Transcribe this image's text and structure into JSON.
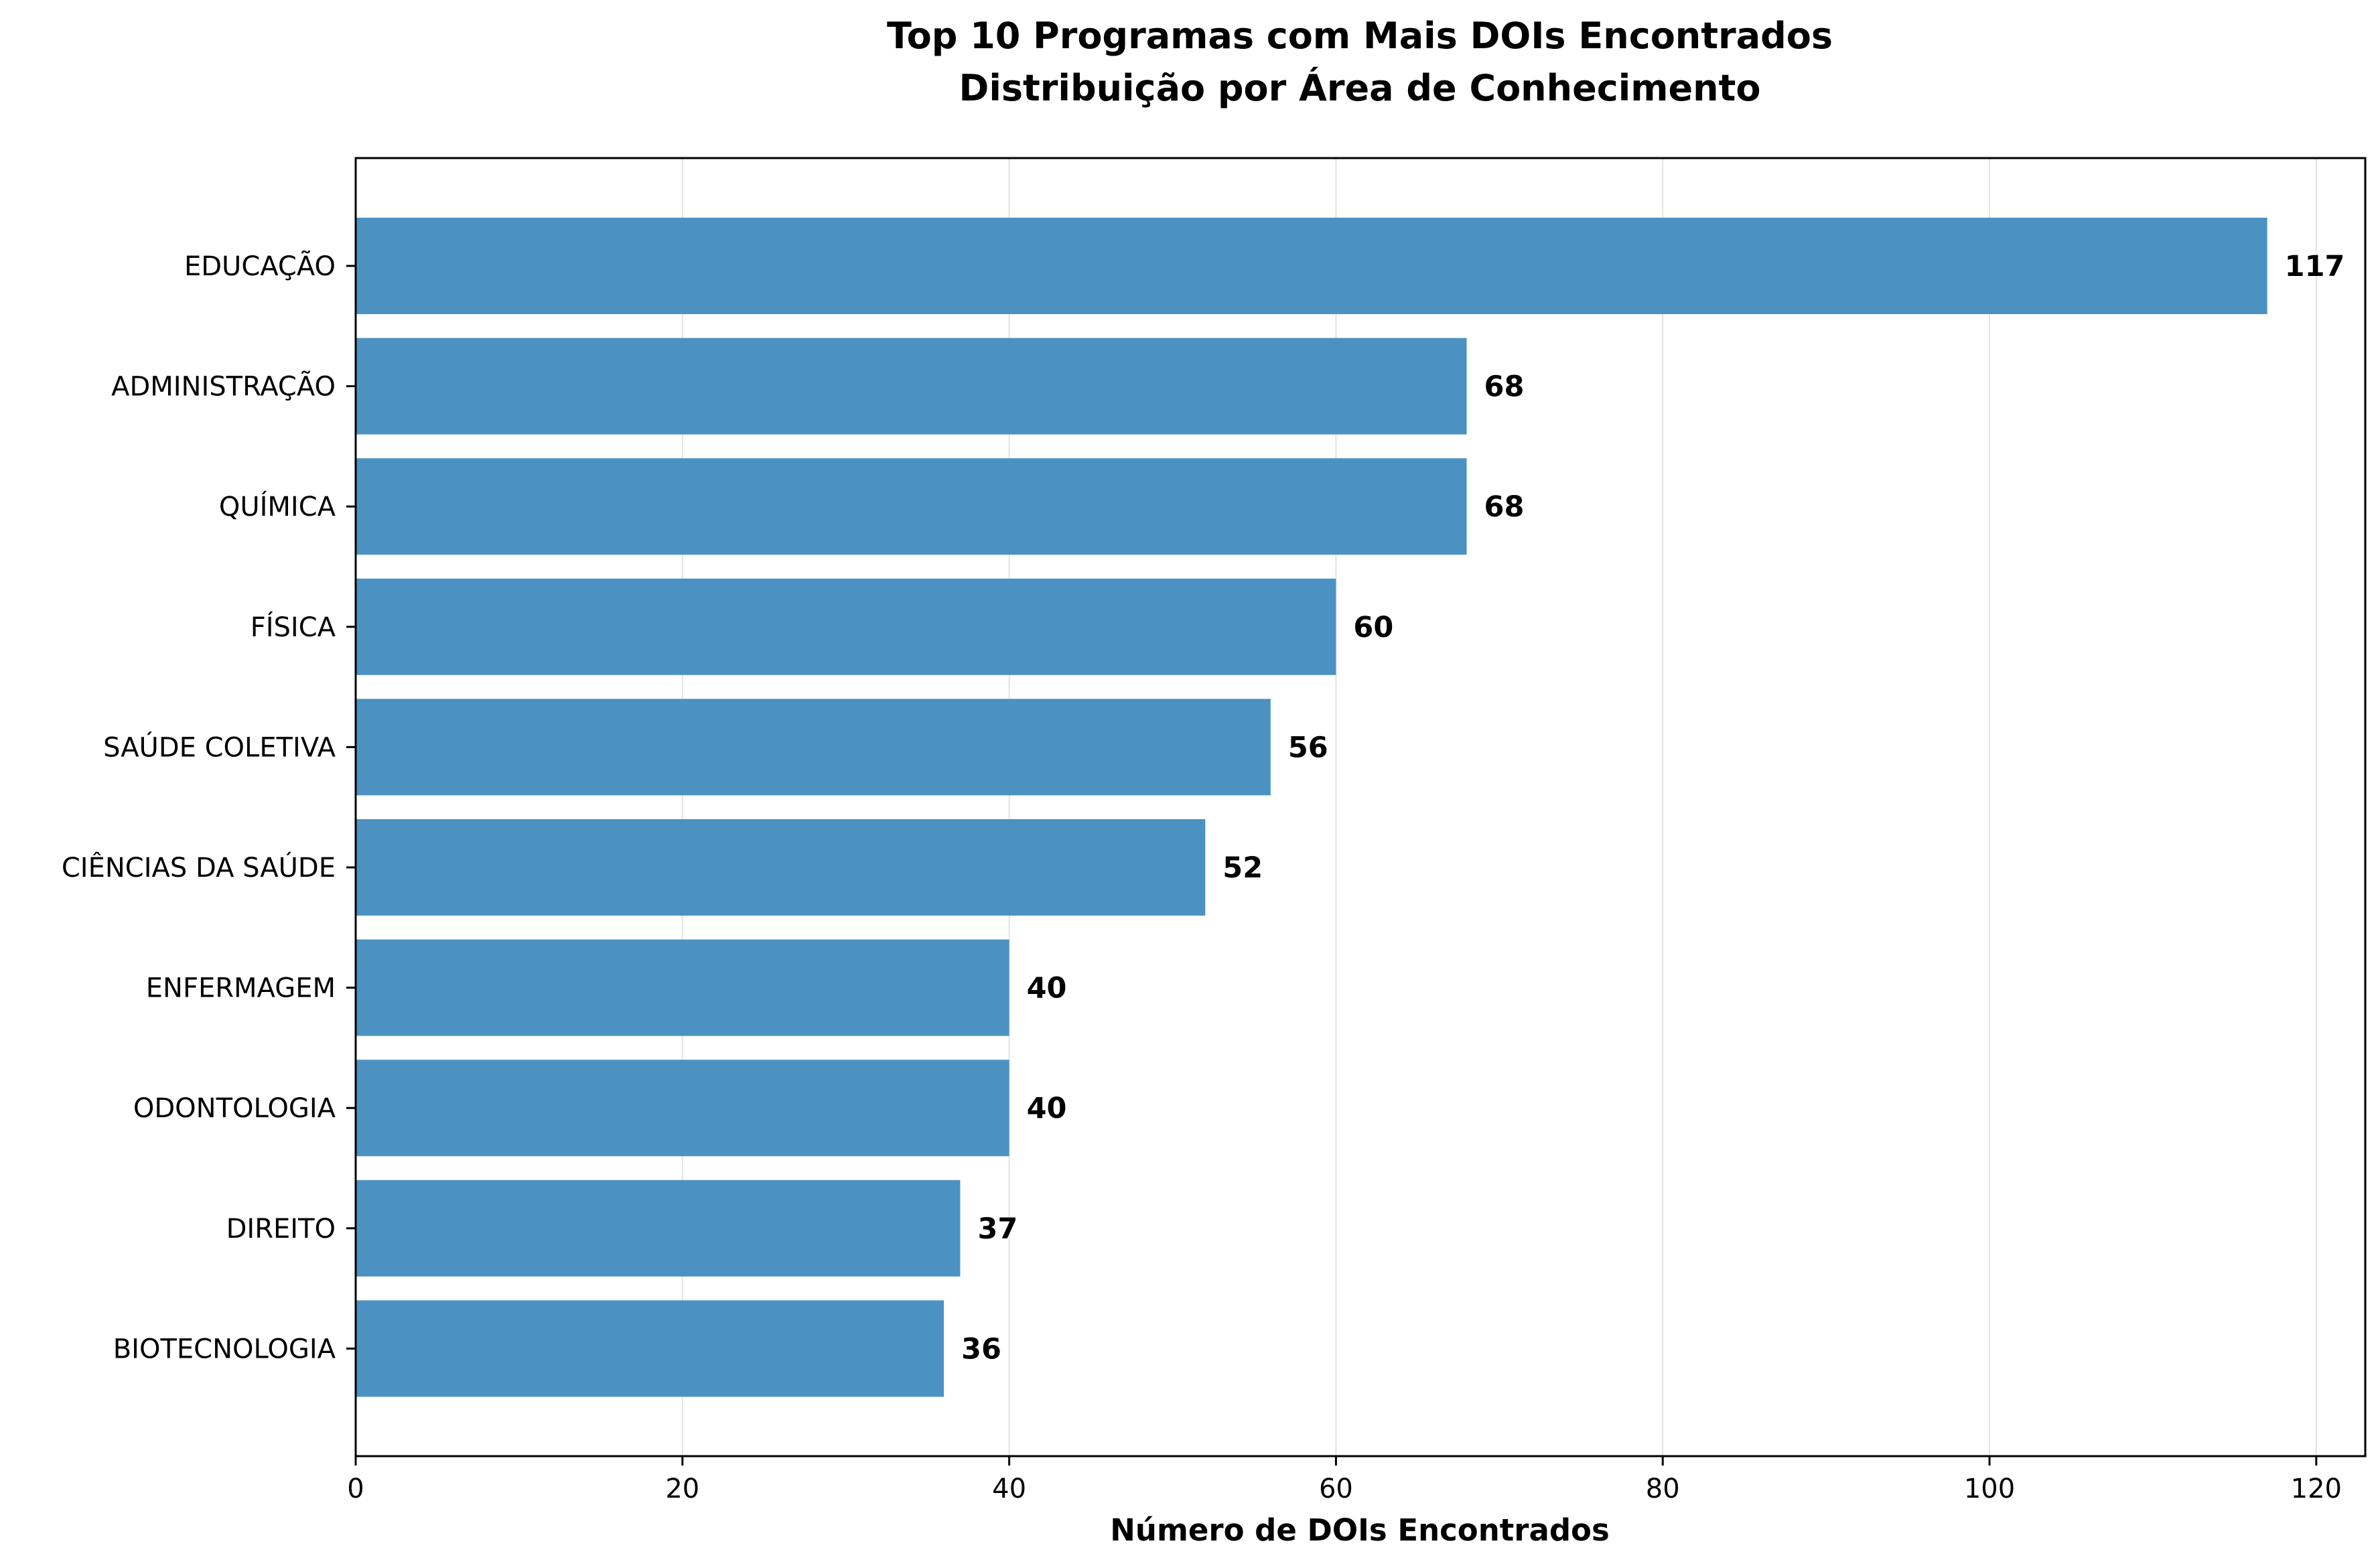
{
  "chart_data": {
    "type": "bar",
    "orientation": "horizontal",
    "title": "Top 10 Programas com Mais DOIs Encontrados",
    "subtitle": "Distribuição por Área de Conhecimento",
    "xlabel": "Número de DOIs Encontrados",
    "ylabel": "",
    "categories": [
      "EDUCAÇÃO",
      "ADMINISTRAÇÃO",
      "QUÍMICA",
      "FÍSICA",
      "SAÚDE COLETIVA",
      "CIÊNCIAS DA SAÚDE",
      "ENFERMAGEM",
      "ODONTOLOGIA",
      "DIREITO",
      "BIOTECNOLOGIA"
    ],
    "values": [
      117,
      68,
      68,
      60,
      56,
      52,
      40,
      40,
      37,
      36
    ],
    "xlim": [
      0,
      123
    ],
    "xticks": [
      0,
      20,
      40,
      60,
      80,
      100,
      120
    ],
    "grid": "x",
    "bar_color": "#4b92c3"
  }
}
